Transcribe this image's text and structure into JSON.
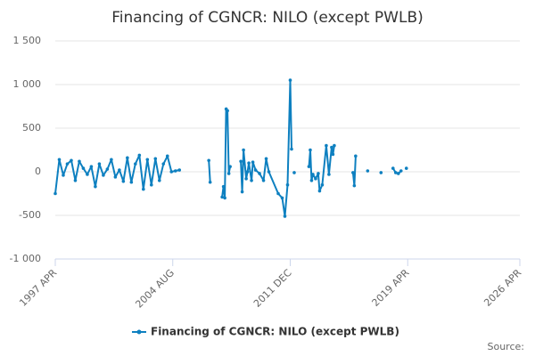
{
  "chart_data": {
    "type": "line",
    "title": "Financing of CGNCR: NILO (except PWLB)",
    "source": "Source:",
    "grid": true,
    "legend": "bottom",
    "xlim": [
      "1997 APR",
      "2026 APR"
    ],
    "xticks": [
      "1997 APR",
      "2004 AUG",
      "2011 DEC",
      "2019 APR",
      "2026 APR"
    ],
    "ylim": [
      -1000,
      1500
    ],
    "yticks": [
      {
        "value": -1000,
        "label": "-1 000"
      },
      -500,
      0,
      500,
      {
        "value": 1000,
        "label": "1 000"
      },
      {
        "value": 1500,
        "label": "1 500"
      }
    ],
    "x": [
      "1997 APR",
      "1997 JUL",
      "1997 OCT",
      "1998 JAN",
      "1998 APR",
      "1998 JUL",
      "1998 OCT",
      "1999 JAN",
      "1999 APR",
      "1999 JUL",
      "1999 OCT",
      "2000 JAN",
      "2000 APR",
      "2000 JUL",
      "2000 OCT",
      "2001 JAN",
      "2001 APR",
      "2001 JUL",
      "2001 OCT",
      "2002 JAN",
      "2002 APR",
      "2002 JUL",
      "2002 OCT",
      "2003 JAN",
      "2003 APR",
      "2003 JUL",
      "2003 OCT",
      "2004 JAN",
      "2004 APR",
      "2004 JUL",
      "2004 OCT",
      "2005 JAN",
      "2005 APR",
      "2006 NOV",
      "2006 DEC",
      "2007 FEB",
      "2007 SEP",
      "2007 OCT",
      "2007 NOV",
      "2007 DEC",
      "2008 JAN",
      "2008 FEB",
      "2008 MAR",
      "2008 JUN",
      "2008 NOV",
      "2008 DEC",
      "2009 JAN",
      "2009 MAR",
      "2009 APR",
      "2009 MAY",
      "2009 JUL",
      "2009 AUG",
      "2009 OCT",
      "2010 JAN",
      "2010 APR",
      "2010 JUN",
      "2010 AUG",
      "2011 MAR",
      "2011 JUN",
      "2011 AUG",
      "2011 OCT",
      "2011 DEC",
      "2012 JAN",
      "2012 FEB",
      "2012 MAR",
      "2012 MAY",
      "2013 FEB",
      "2013 MAR",
      "2013 APR",
      "2013 MAY",
      "2013 JUL",
      "2013 SEP",
      "2013 OCT",
      "2013 DEC",
      "2014 MAR",
      "2014 MAY",
      "2014 JUL",
      "2014 AUG",
      "2014 SEP",
      "2014 DEC",
      "2015 NOV",
      "2015 DEC",
      "2016 JAN",
      "2016 MAR",
      "2016 OCT",
      "2016 DEC",
      "2017 AUG",
      "2017 OCT",
      "2018 MAY",
      "2018 JUL",
      "2018 SEP",
      "2018 NOV",
      "2019 JAN",
      "2019 MAR"
    ],
    "series": [
      {
        "name": "Financing of CGNCR: NILO (except PWLB)",
        "color": "#0e80c0",
        "values": [
          -250,
          140,
          -40,
          90,
          130,
          -100,
          120,
          40,
          -30,
          60,
          -170,
          90,
          -40,
          30,
          140,
          -60,
          20,
          -110,
          160,
          -120,
          90,
          190,
          -200,
          140,
          -150,
          150,
          -100,
          90,
          180,
          0,
          10,
          20,
          null,
          130,
          -120,
          null,
          -290,
          -170,
          -300,
          720,
          700,
          -20,
          60,
          null,
          120,
          -230,
          250,
          -80,
          0,
          100,
          -100,
          110,
          20,
          -20,
          -100,
          150,
          0,
          -250,
          -300,
          -510,
          -150,
          1050,
          260,
          null,
          -10,
          null,
          60,
          250,
          -100,
          -30,
          -80,
          -20,
          -220,
          -150,
          300,
          -30,
          280,
          200,
          300,
          null,
          -10,
          -160,
          180,
          null,
          10,
          null,
          -10,
          null,
          40,
          -10,
          -20,
          10,
          null,
          40
        ]
      }
    ]
  }
}
